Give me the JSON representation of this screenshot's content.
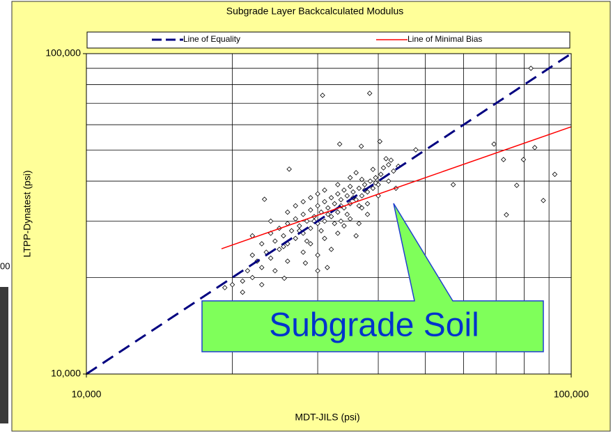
{
  "fragment_text": "00",
  "chart_data": {
    "type": "scatter",
    "title": "Subgrade Layer Backcalculated Modulus",
    "x_label": "MDT-JILS (psi)",
    "y_label": "LTPP-Dynatest (psi)",
    "log_x": true,
    "log_y": true,
    "grid": true,
    "xlim": [
      10000,
      100000
    ],
    "ylim": [
      10000,
      100000
    ],
    "xticks": [
      {
        "value": 10000,
        "label": "10,000"
      },
      {
        "value": 100000,
        "label": "100,000"
      }
    ],
    "yticks": [
      {
        "value": 10000,
        "label": "10,000"
      },
      {
        "value": 100000,
        "label": "100,000"
      }
    ],
    "xgrid": [
      20000,
      30000,
      40000,
      50000,
      60000,
      70000,
      80000,
      90000
    ],
    "ygrid": [
      20000,
      30000,
      40000,
      50000,
      60000,
      70000,
      80000,
      90000
    ],
    "legend_position": "top",
    "annotation": "Subgrade Soil",
    "lines": [
      {
        "name": "Line of Equality",
        "color": "#000080",
        "dashed": true,
        "x": [
          10000,
          100000
        ],
        "y": [
          10000,
          100000
        ]
      },
      {
        "name": "Line of Minimal Bias",
        "color": "#ff0000",
        "dashed": false,
        "x": [
          19000,
          100000
        ],
        "y": [
          24600,
          59100
        ]
      }
    ],
    "points": {
      "x": [
        21000,
        21500,
        22000,
        22500,
        22000,
        23000,
        23500,
        23000,
        24000,
        24500,
        24000,
        25000,
        25500,
        25000,
        26000,
        26500,
        26000,
        27000,
        27500,
        27000,
        28000,
        28500,
        28000,
        29000,
        29500,
        29000,
        30000,
        30500,
        30000,
        31000,
        31500,
        31000,
        32000,
        32500,
        32000,
        33000,
        33500,
        33000,
        34000,
        34500,
        34000,
        35000,
        35500,
        35000,
        36000,
        36500,
        37000,
        37500,
        38000,
        38500,
        39000,
        39500,
        40000,
        40500,
        41000,
        42000,
        41500,
        42500,
        29000,
        31000,
        33000,
        34000,
        35000,
        36000,
        36500,
        37000,
        38000,
        32000,
        30000,
        28000,
        26000,
        24500,
        23000,
        27000,
        29000,
        31000,
        33000,
        30000,
        28000,
        26000,
        24000,
        22000,
        35000,
        36000,
        37000,
        39000,
        33500,
        25500,
        27500,
        29500,
        31500,
        33500,
        35500,
        37500,
        39500,
        28500,
        30500,
        32500,
        34500,
        36500,
        21000,
        20000,
        38000,
        40000,
        42000,
        43000,
        44000,
        43500,
        30000,
        30700,
        38400,
        82600,
        33300,
        36900,
        40300,
        47800,
        69300,
        72500,
        84100,
        79700,
        77200,
        73500,
        87600,
        92500,
        57100,
        26200,
        23300,
        19300,
        25600,
        31400,
        28300
      ],
      "y": [
        19500,
        21000,
        20000,
        22500,
        23500,
        21500,
        24000,
        25500,
        23000,
        26000,
        27500,
        24500,
        27000,
        28500,
        25500,
        28000,
        29500,
        26500,
        29000,
        30500,
        27500,
        30000,
        31500,
        28500,
        31000,
        32500,
        29500,
        32000,
        33500,
        30000,
        33000,
        34500,
        31000,
        34000,
        35500,
        32000,
        35000,
        36500,
        33000,
        36000,
        37500,
        34000,
        37000,
        38500,
        35000,
        38000,
        36000,
        39000,
        37000,
        40000,
        38000,
        41000,
        39000,
        42000,
        44000,
        45000,
        47000,
        46500,
        25500,
        26500,
        27500,
        29000,
        30500,
        27000,
        29500,
        33000,
        31500,
        24500,
        23500,
        24000,
        22500,
        21000,
        19000,
        33500,
        35500,
        37500,
        39000,
        36500,
        34500,
        32000,
        30000,
        27000,
        41000,
        42500,
        40500,
        43500,
        30000,
        25000,
        28000,
        30000,
        31500,
        33500,
        35500,
        37500,
        39500,
        26000,
        28000,
        29500,
        31500,
        33500,
        18000,
        19000,
        34000,
        36000,
        40000,
        43000,
        44500,
        38000,
        21000,
        74100,
        75200,
        90000,
        52200,
        51400,
        53200,
        50100,
        52200,
        46700,
        50900,
        46700,
        38800,
        31400,
        34800,
        42000,
        39000,
        43600,
        35100,
        18600,
        19900,
        21500,
        22200
      ]
    }
  }
}
